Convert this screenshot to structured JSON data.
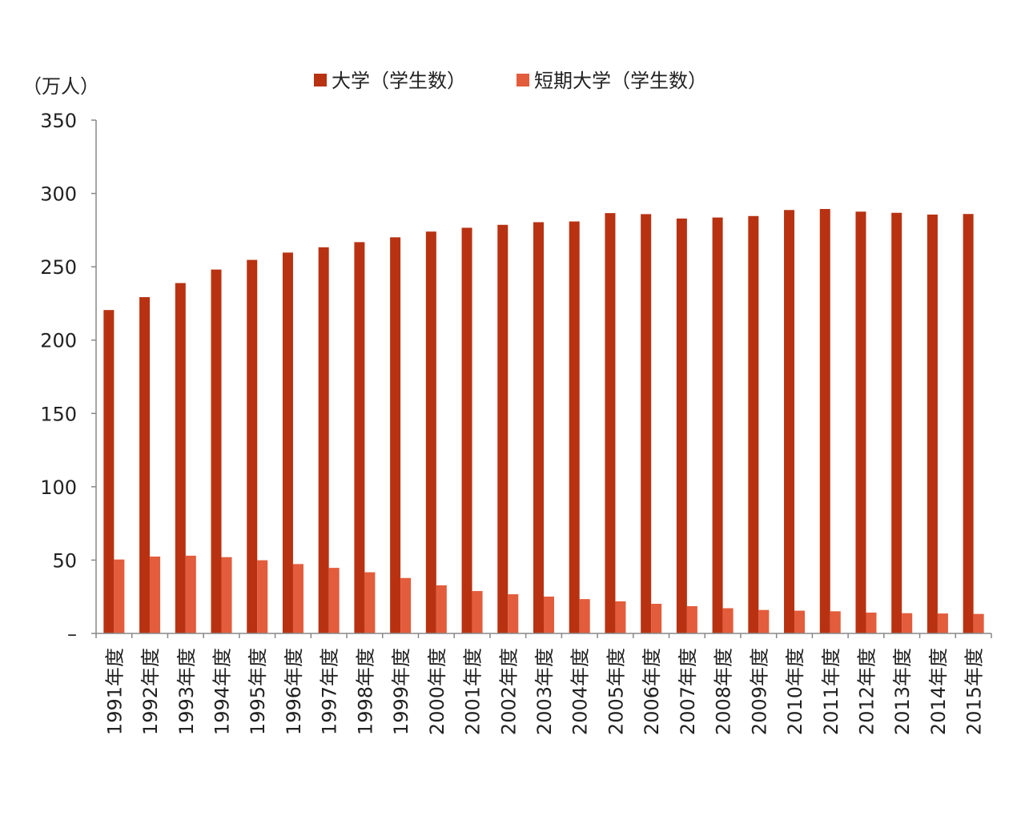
{
  "chart_data": {
    "type": "bar",
    "unit_label": "（万人）",
    "categories": [
      "1991年度",
      "1992年度",
      "1993年度",
      "1994年度",
      "1995年度",
      "1996年度",
      "1997年度",
      "1998年度",
      "1999年度",
      "2000年度",
      "2001年度",
      "2002年度",
      "2003年度",
      "2004年度",
      "2005年度",
      "2006年度",
      "2007年度",
      "2008年度",
      "2009年度",
      "2010年度",
      "2011年度",
      "2012年度",
      "2013年度",
      "2014年度",
      "2015年度"
    ],
    "series": [
      {
        "name": "大学（学生数）",
        "color": "#b83212",
        "values": [
          220.5,
          229.3,
          238.9,
          248.1,
          254.7,
          259.7,
          263.3,
          266.8,
          270.1,
          274.0,
          276.6,
          278.6,
          280.4,
          280.9,
          286.6,
          285.9,
          282.9,
          283.6,
          284.6,
          288.7,
          289.4,
          287.6,
          286.8,
          285.6,
          286.0
        ]
      },
      {
        "name": "短期大学（学生数）",
        "color": "#e35c3c",
        "values": [
          50.4,
          52.4,
          53.0,
          52.0,
          49.9,
          47.3,
          44.7,
          41.7,
          37.8,
          32.8,
          28.9,
          26.7,
          25.1,
          23.4,
          21.9,
          20.2,
          18.6,
          17.2,
          16.0,
          15.5,
          15.1,
          14.2,
          13.8,
          13.6,
          13.3
        ]
      }
    ],
    "y_ticks": [
      "–",
      "50",
      "100",
      "150",
      "200",
      "250",
      "300",
      "350"
    ],
    "ylim": [
      0,
      350
    ],
    "grid": false,
    "legend_position": "top-center"
  }
}
